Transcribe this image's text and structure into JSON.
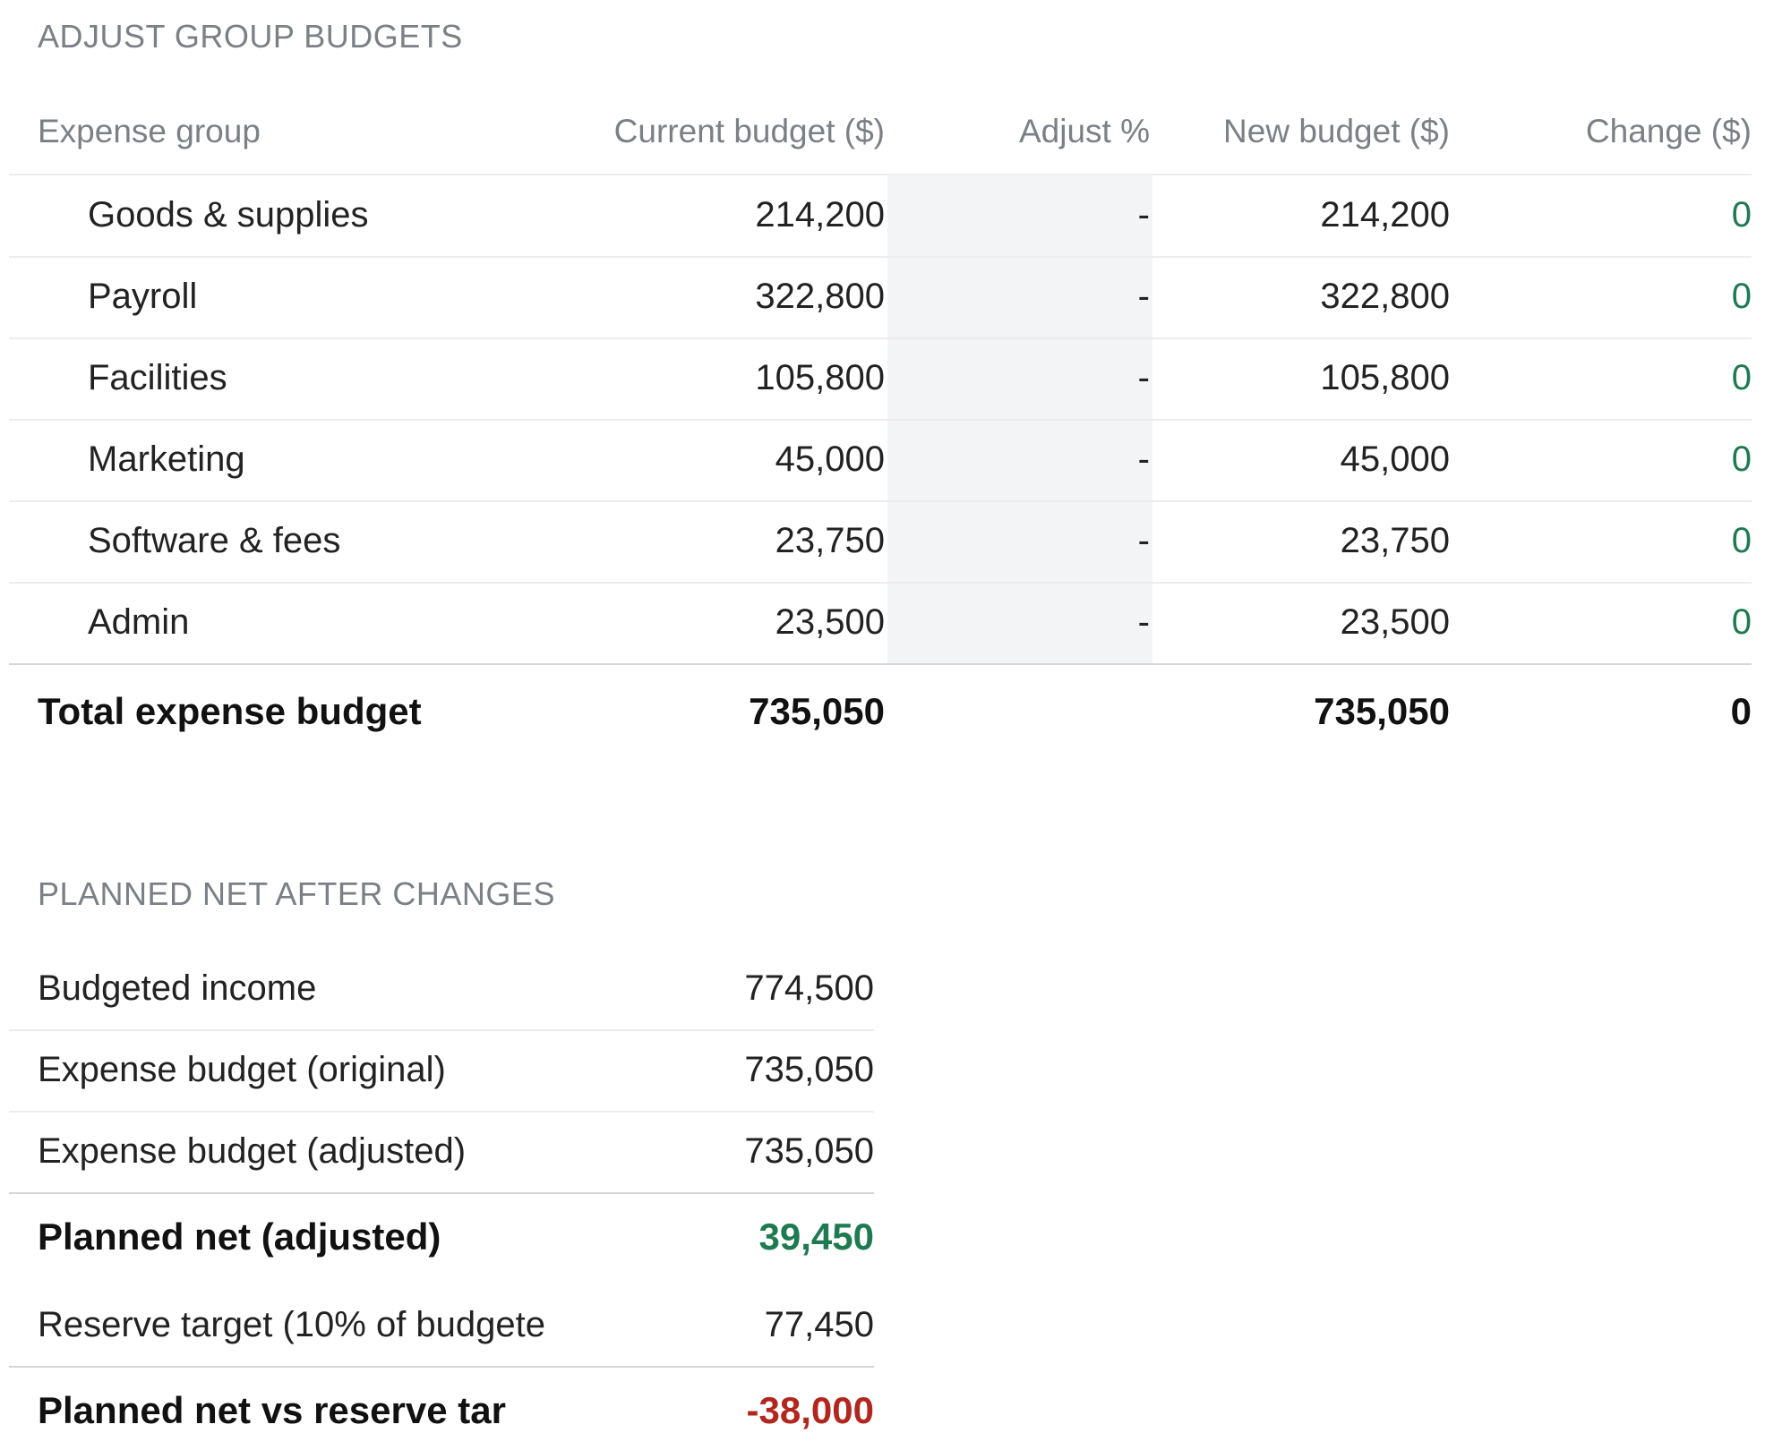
{
  "budget_section": {
    "title": "ADJUST GROUP BUDGETS",
    "columns": [
      "Expense group",
      "Current budget ($)",
      "Adjust %",
      "New budget ($)",
      "Change ($)"
    ],
    "rows": [
      {
        "group": "Goods & supplies",
        "current": "214,200",
        "adjust": "-",
        "new": "214,200",
        "change": "0"
      },
      {
        "group": "Payroll",
        "current": "322,800",
        "adjust": "-",
        "new": "322,800",
        "change": "0"
      },
      {
        "group": "Facilities",
        "current": "105,800",
        "adjust": "-",
        "new": "105,800",
        "change": "0"
      },
      {
        "group": "Marketing",
        "current": "45,000",
        "adjust": "-",
        "new": "45,000",
        "change": "0"
      },
      {
        "group": "Software & fees",
        "current": "23,750",
        "adjust": "-",
        "new": "23,750",
        "change": "0"
      },
      {
        "group": "Admin",
        "current": "23,500",
        "adjust": "-",
        "new": "23,500",
        "change": "0"
      }
    ],
    "total": {
      "label": "Total expense budget",
      "current": "735,050",
      "new": "735,050",
      "change": "0"
    }
  },
  "net_section": {
    "title": "PLANNED NET AFTER CHANGES",
    "rows": [
      {
        "label": "Budgeted income",
        "value": "774,500"
      },
      {
        "label": "Expense budget (original)",
        "value": "735,050"
      },
      {
        "label": "Expense budget (adjusted)",
        "value": "735,050"
      },
      {
        "label": "Planned net (adjusted)",
        "value": "39,450"
      },
      {
        "label": "Reserve target (10% of budgete",
        "value": "77,450"
      },
      {
        "label": "Planned net vs reserve tar",
        "value": "-38,000"
      }
    ]
  },
  "colors": {
    "positive": "#1e7a4f",
    "negative": "#b3261e",
    "muted": "#7b8087",
    "adjust_band": "#f3f4f6"
  }
}
